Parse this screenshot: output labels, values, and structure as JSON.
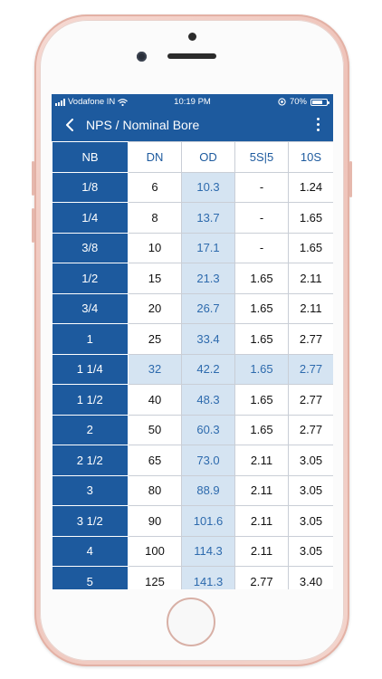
{
  "status_bar": {
    "carrier": "Vodafone IN",
    "time": "10:19 PM",
    "battery": "70%",
    "battery_level": 0.7,
    "icons": [
      "signal-icon",
      "wifi-icon",
      "location-icon",
      "battery-icon"
    ]
  },
  "nav": {
    "title": "NPS / Nominal Bore",
    "back_icon": "chevron-left-icon",
    "menu_icon": "more-vertical-icon"
  },
  "table": {
    "headers": [
      "NB",
      "DN",
      "OD",
      "5S|5",
      "10S"
    ],
    "highlighted_row": 6,
    "rows": [
      {
        "nb": "1/8",
        "dn": "6",
        "od": "10.3",
        "s5": "-",
        "s10": "1.24"
      },
      {
        "nb": "1/4",
        "dn": "8",
        "od": "13.7",
        "s5": "-",
        "s10": "1.65"
      },
      {
        "nb": "3/8",
        "dn": "10",
        "od": "17.1",
        "s5": "-",
        "s10": "1.65"
      },
      {
        "nb": "1/2",
        "dn": "15",
        "od": "21.3",
        "s5": "1.65",
        "s10": "2.11"
      },
      {
        "nb": "3/4",
        "dn": "20",
        "od": "26.7",
        "s5": "1.65",
        "s10": "2.11"
      },
      {
        "nb": "1",
        "dn": "25",
        "od": "33.4",
        "s5": "1.65",
        "s10": "2.77"
      },
      {
        "nb": "1 1/4",
        "dn": "32",
        "od": "42.2",
        "s5": "1.65",
        "s10": "2.77"
      },
      {
        "nb": "1 1/2",
        "dn": "40",
        "od": "48.3",
        "s5": "1.65",
        "s10": "2.77"
      },
      {
        "nb": "2",
        "dn": "50",
        "od": "60.3",
        "s5": "1.65",
        "s10": "2.77"
      },
      {
        "nb": "2 1/2",
        "dn": "65",
        "od": "73.0",
        "s5": "2.11",
        "s10": "3.05"
      },
      {
        "nb": "3",
        "dn": "80",
        "od": "88.9",
        "s5": "2.11",
        "s10": "3.05"
      },
      {
        "nb": "3 1/2",
        "dn": "90",
        "od": "101.6",
        "s5": "2.11",
        "s10": "3.05"
      },
      {
        "nb": "4",
        "dn": "100",
        "od": "114.3",
        "s5": "2.11",
        "s10": "3.05"
      },
      {
        "nb": "5",
        "dn": "125",
        "od": "141.3",
        "s5": "2.77",
        "s10": "3.40"
      }
    ]
  },
  "colors": {
    "primary": "#1d5a9e",
    "highlight": "#d5e4f2",
    "accent_text": "#2d6aad",
    "phone_body": "#eec2b8"
  }
}
